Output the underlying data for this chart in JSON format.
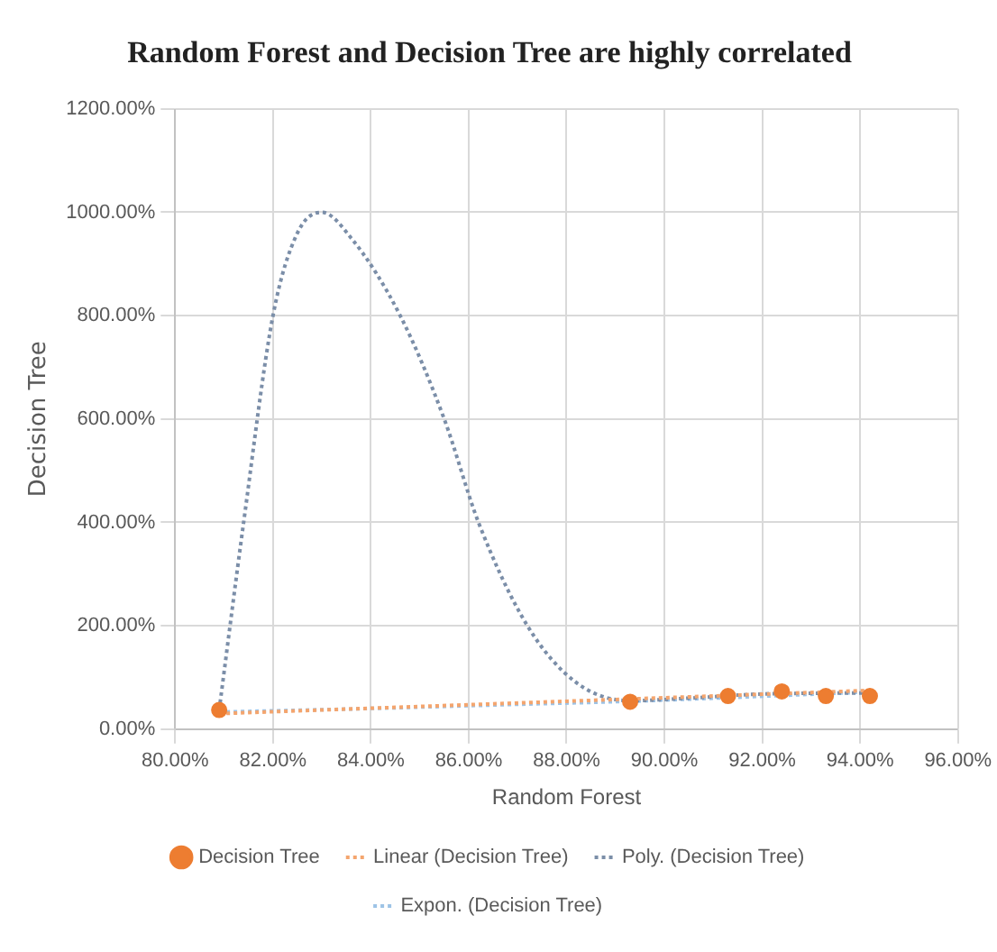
{
  "chart_data": {
    "type": "scatter",
    "title": "Random Forest and Decision Tree are highly correlated",
    "xlabel": "Random Forest",
    "ylabel": "Decision Tree",
    "xlim": [
      80,
      96
    ],
    "xticks": [
      {
        "value": 80,
        "label": "80.00%"
      },
      {
        "value": 82,
        "label": "82.00%"
      },
      {
        "value": 84,
        "label": "84.00%"
      },
      {
        "value": 86,
        "label": "86.00%"
      },
      {
        "value": 88,
        "label": "88.00%"
      },
      {
        "value": 90,
        "label": "90.00%"
      },
      {
        "value": 92,
        "label": "92.00%"
      },
      {
        "value": 94,
        "label": "94.00%"
      },
      {
        "value": 96,
        "label": "96.00%"
      }
    ],
    "ylim": [
      0,
      1200
    ],
    "yticks": [
      {
        "value": 0,
        "label": "0.00%"
      },
      {
        "value": 200,
        "label": "200.00%"
      },
      {
        "value": 400,
        "label": "400.00%"
      },
      {
        "value": 600,
        "label": "600.00%"
      },
      {
        "value": 800,
        "label": "800.00%"
      },
      {
        "value": 1000,
        "label": "1000.00%"
      },
      {
        "value": 1200,
        "label": "1200.00%"
      }
    ],
    "grid": true,
    "legend": "bottom",
    "series": [
      {
        "name": "Decision Tree",
        "marker": "circle",
        "color": "#ed7d31",
        "x": [
          80.9,
          89.3,
          91.3,
          92.4,
          93.3,
          94.2
        ],
        "values": [
          37,
          53,
          64,
          73,
          64,
          64
        ]
      },
      {
        "name": "Linear (Decision Tree)",
        "type": "line",
        "marker": "none",
        "line_style": "dotted",
        "color": "#f4a56e",
        "x": [
          80.9,
          94.2
        ],
        "values": [
          30,
          75
        ]
      },
      {
        "name": "Poly. (Decision Tree)",
        "type": "line",
        "marker": "none",
        "line_style": "dotted",
        "color": "#7b8ea8",
        "x": [
          80.9,
          81.4,
          82.0,
          82.5,
          83.0,
          83.6,
          84.6,
          85.5,
          86.2,
          87.2,
          88.2,
          89.3,
          90.5,
          92.0,
          94.2
        ],
        "values": [
          37,
          400,
          800,
          960,
          1000,
          950,
          800,
          600,
          400,
          200,
          90,
          55,
          60,
          68,
          70
        ]
      },
      {
        "name": "Expon. (Decision Tree)",
        "type": "line",
        "marker": "none",
        "line_style": "dotted",
        "color": "#9dc3e6",
        "x": [
          80.9,
          84,
          87,
          89.3,
          94.2
        ],
        "values": [
          33,
          40,
          48,
          54,
          72
        ]
      }
    ]
  }
}
